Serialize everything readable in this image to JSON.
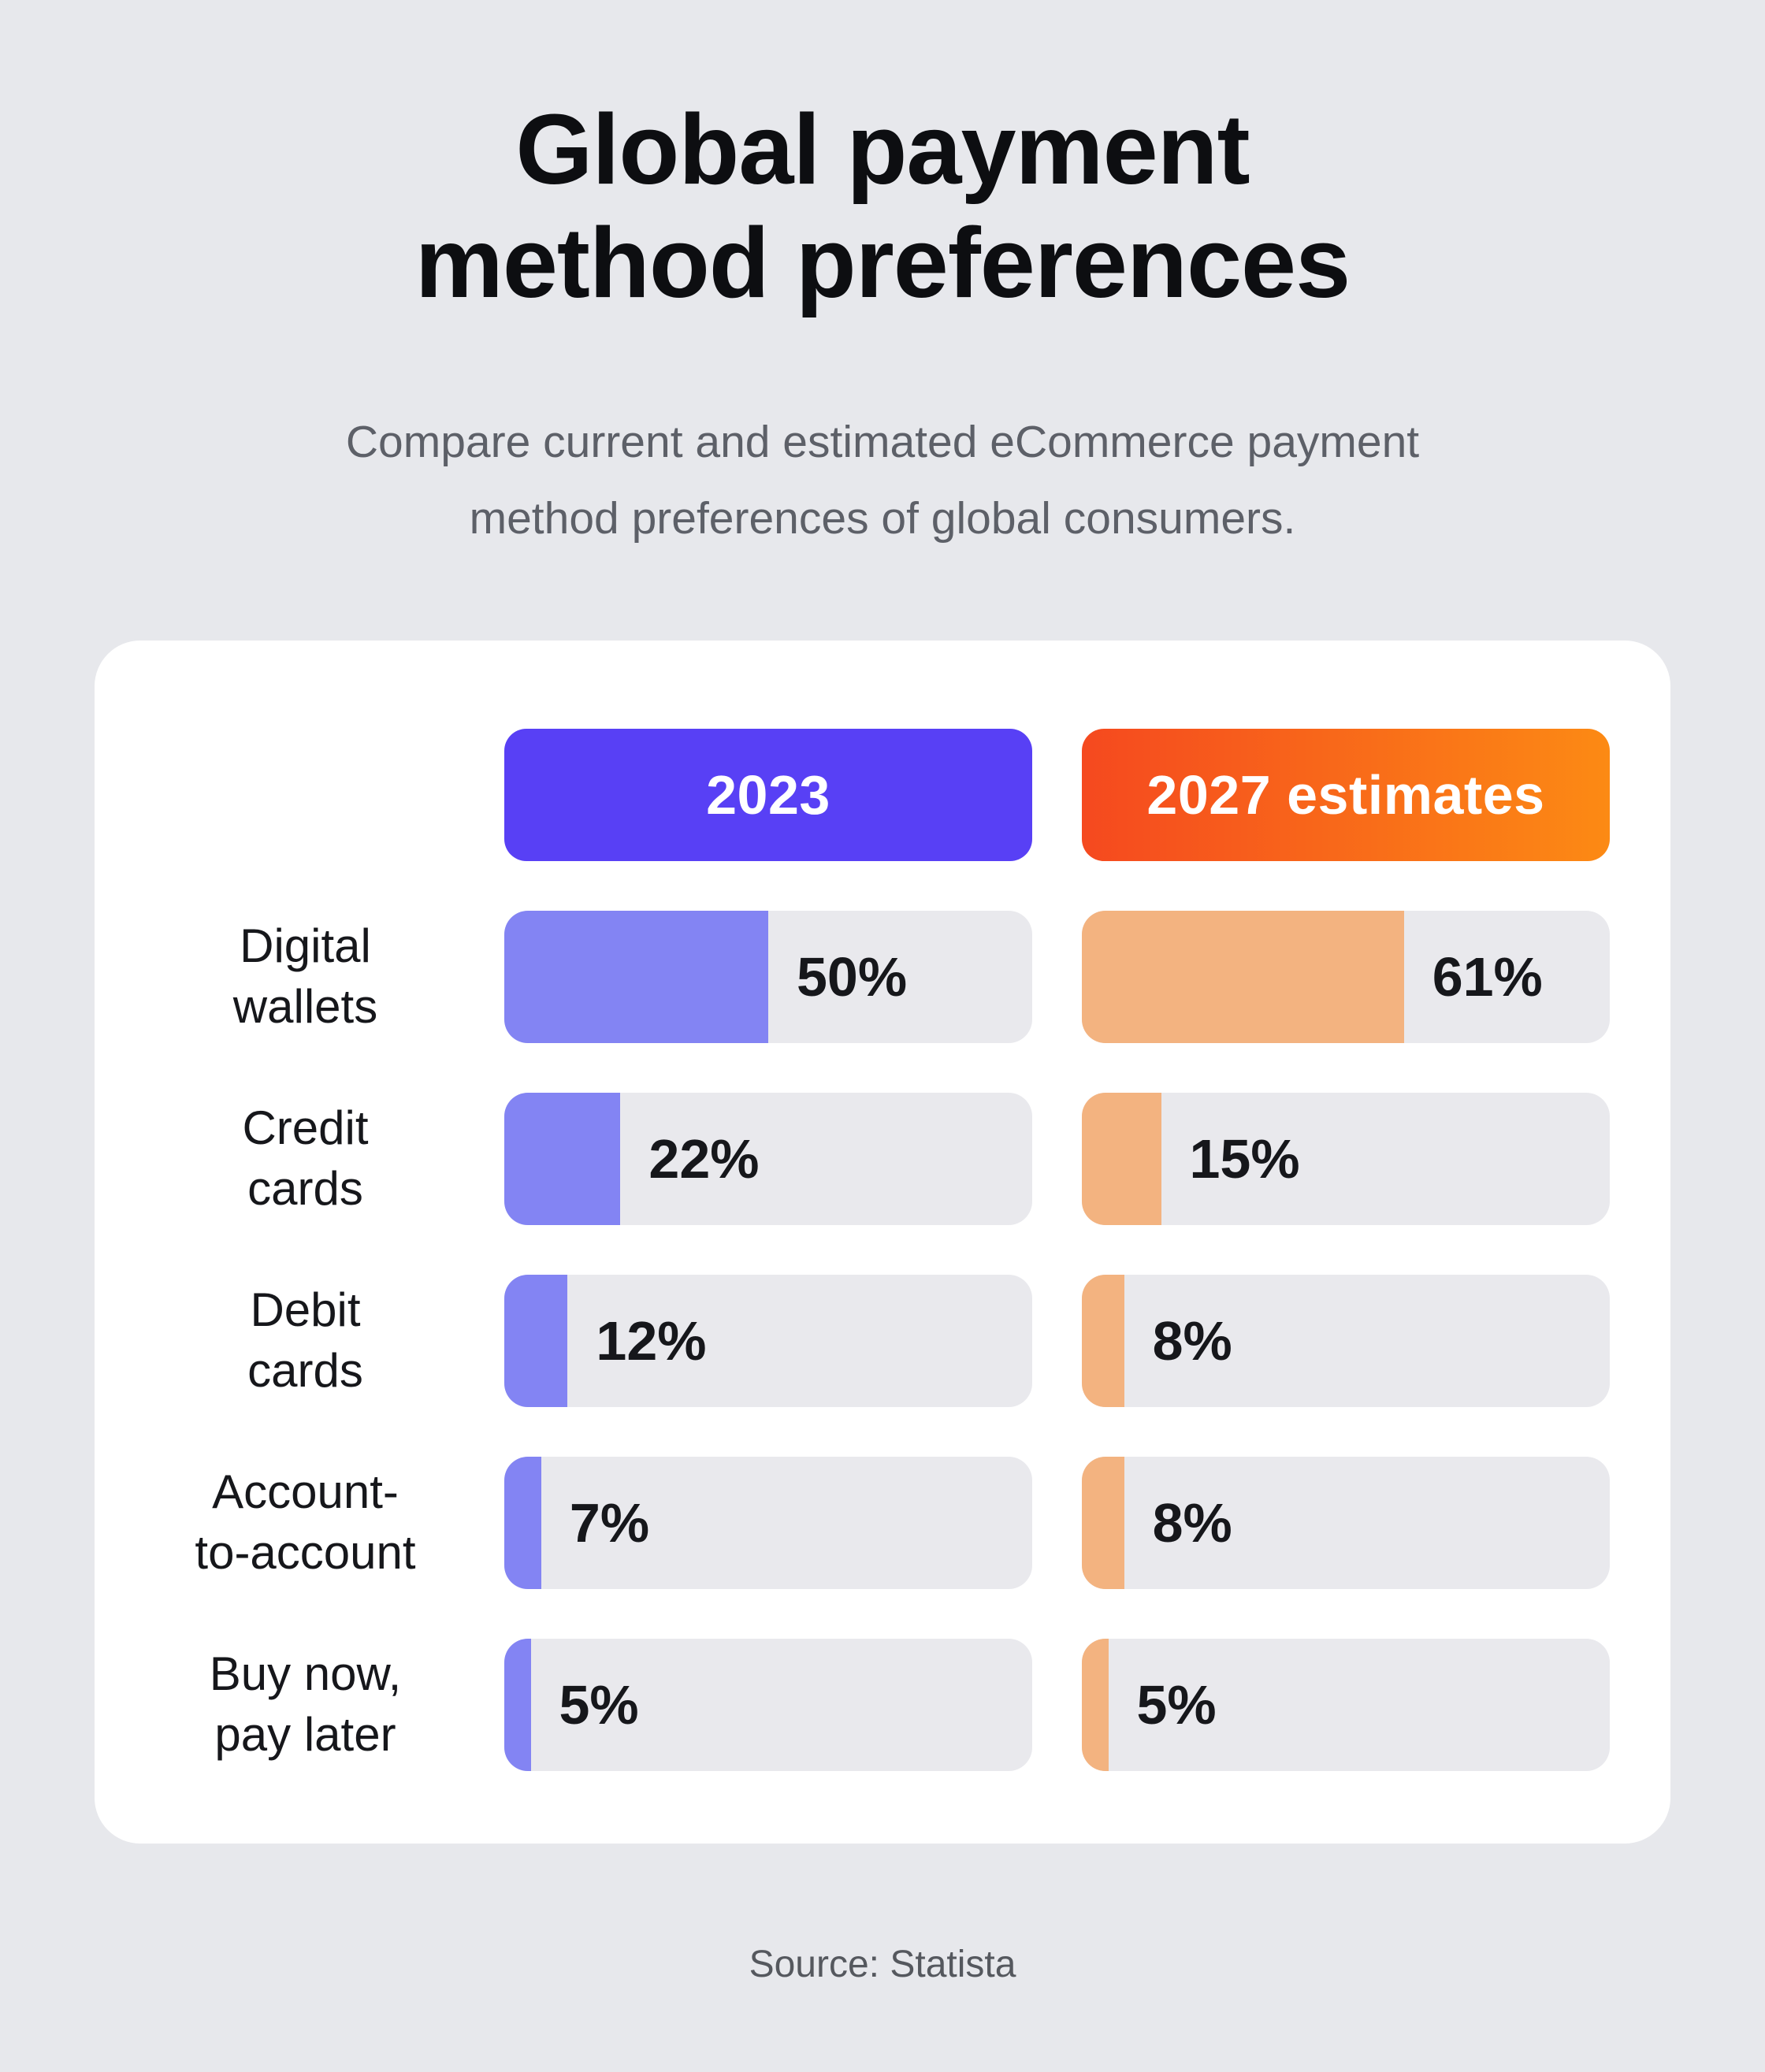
{
  "colors": {
    "page-bg": "#E7E8EC",
    "card-bg": "#FFFFFF",
    "track": "#E9E9ED",
    "accent-2023": "#5840F5",
    "accent-2027-start": "#F5491F",
    "accent-2027-end": "#FC8A14",
    "fill-2023": "#8384F3",
    "fill-2027": "#F3B380",
    "title-text": "#0D0E11",
    "subtitle-text": "#5D6068",
    "label-text": "#16171B",
    "value-text": "#16171B",
    "source-text": "#55585E"
  },
  "header": {
    "title_line1": "Global payment",
    "title_line2": "method preferences",
    "subtitle_line1": "Compare current and estimated eCommerce payment",
    "subtitle_line2": "method preferences of global consumers."
  },
  "legend": {
    "series1_label": "2023",
    "series2_label": "2027 estimates"
  },
  "rows": [
    {
      "label_line1": "Digital",
      "label_line2": "wallets",
      "bars": [
        {
          "text": "50%",
          "pct": 50
        },
        {
          "text": "61%",
          "pct": 61
        }
      ]
    },
    {
      "label_line1": "Credit",
      "label_line2": "cards",
      "bars": [
        {
          "text": "22%",
          "pct": 22
        },
        {
          "text": "15%",
          "pct": 15
        }
      ]
    },
    {
      "label_line1": "Debit",
      "label_line2": "cards",
      "bars": [
        {
          "text": "12%",
          "pct": 12
        },
        {
          "text": "8%",
          "pct": 8
        }
      ]
    },
    {
      "label_line1": "Account-",
      "label_line2": "to-account",
      "bars": [
        {
          "text": "7%",
          "pct": 7
        },
        {
          "text": "8%",
          "pct": 8
        }
      ]
    },
    {
      "label_line1": "Buy now,",
      "label_line2": "pay later",
      "bars": [
        {
          "text": "5%",
          "pct": 5
        },
        {
          "text": "5%",
          "pct": 5
        }
      ]
    }
  ],
  "footer": {
    "source": "Source: Statista"
  },
  "chart_data": {
    "type": "bar",
    "orientation": "horizontal",
    "title": "Global payment method preferences",
    "subtitle": "Compare current and estimated eCommerce payment method preferences of global consumers.",
    "categories": [
      "Digital wallets",
      "Credit cards",
      "Debit cards",
      "Account-to-account",
      "Buy now, pay later"
    ],
    "series": [
      {
        "name": "2023",
        "values": [
          50,
          22,
          12,
          7,
          5
        ],
        "color": "#8384F3",
        "legend_color": "#5840F5"
      },
      {
        "name": "2027 estimates",
        "values": [
          61,
          15,
          8,
          8,
          5
        ],
        "color": "#F3B380",
        "legend_color": "#F5491F"
      }
    ],
    "value_suffix": "%",
    "xlim": [
      0,
      100
    ],
    "grid": false,
    "legend_position": "top",
    "value_labels": "inside-track-after-fill",
    "source": "Source: Statista"
  }
}
